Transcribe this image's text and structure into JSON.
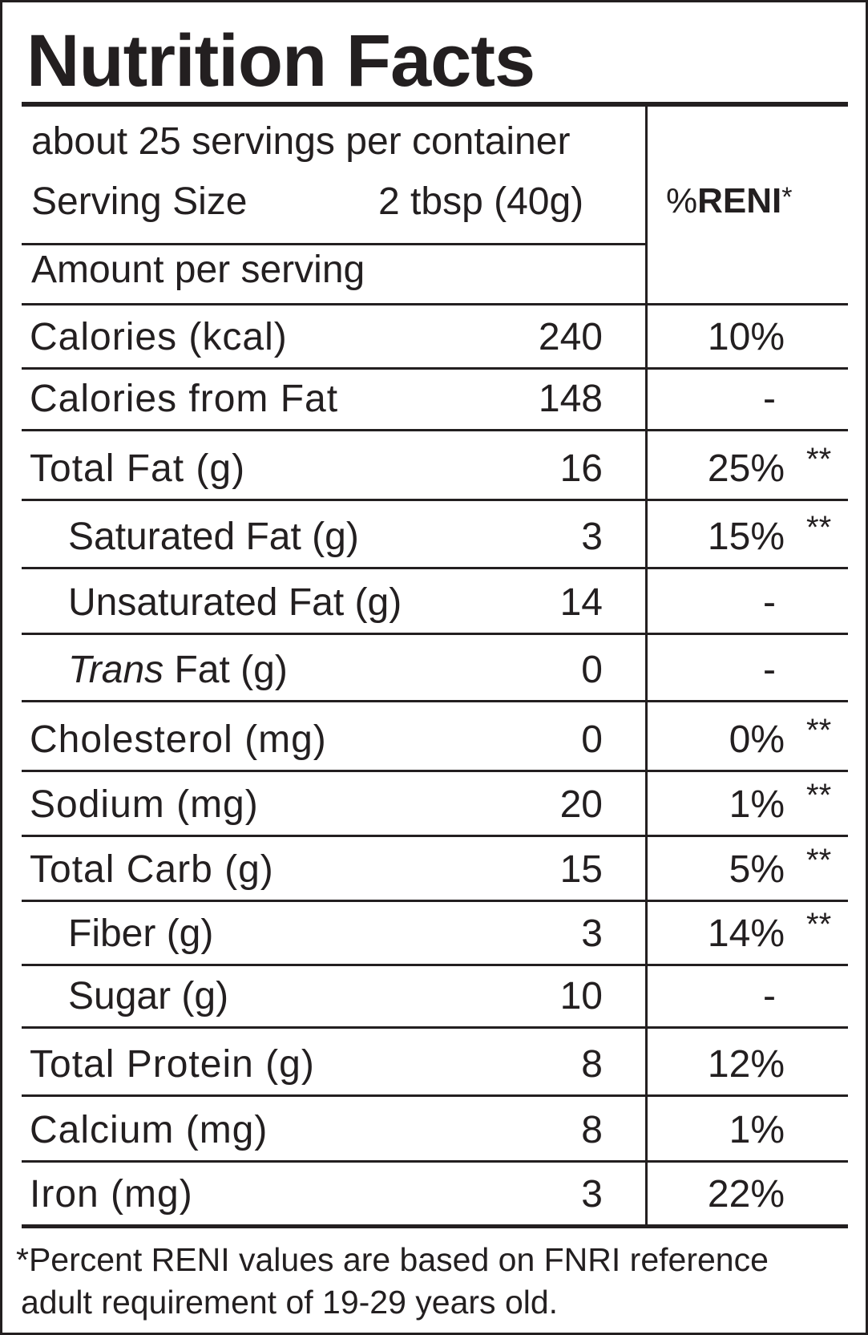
{
  "title": "Nutrition Facts",
  "servings_per_container": "about 25 servings per container",
  "serving_size_label": "Serving Size",
  "serving_size_value": "2 tbsp (40g)",
  "amount_per_serving": "Amount per serving",
  "reni_header": {
    "prefix": "%",
    "bold": "RENI",
    "suffix": "*"
  },
  "rows": [
    {
      "label": "Calories (kcal)",
      "value": "240",
      "pct": "10%",
      "stars": "",
      "indent": false,
      "italic": ""
    },
    {
      "label": "Calories from Fat",
      "value": "148",
      "pct": "-",
      "stars": "",
      "indent": false,
      "italic": ""
    },
    {
      "label": "Total Fat (g)",
      "value": "16",
      "pct": "25%",
      "stars": "**",
      "indent": false,
      "italic": ""
    },
    {
      "label": "Saturated Fat (g)",
      "value": "3",
      "pct": "15%",
      "stars": "**",
      "indent": true,
      "italic": ""
    },
    {
      "label": "Unsaturated Fat (g)",
      "value": "14",
      "pct": "-",
      "stars": "",
      "indent": true,
      "italic": ""
    },
    {
      "label": " Fat (g)",
      "value": "0",
      "pct": "-",
      "stars": "",
      "indent": true,
      "italic": "Trans"
    },
    {
      "label": "Cholesterol (mg)",
      "value": "0",
      "pct": "0%",
      "stars": "**",
      "indent": false,
      "italic": ""
    },
    {
      "label": "Sodium (mg)",
      "value": "20",
      "pct": "1%",
      "stars": "**",
      "indent": false,
      "italic": ""
    },
    {
      "label": "Total Carb (g)",
      "value": "15",
      "pct": "5%",
      "stars": "**",
      "indent": false,
      "italic": ""
    },
    {
      "label": "Fiber (g)",
      "value": "3",
      "pct": "14%",
      "stars": "**",
      "indent": true,
      "italic": ""
    },
    {
      "label": "Sugar (g)",
      "value": "10",
      "pct": "-",
      "stars": "",
      "indent": true,
      "italic": ""
    },
    {
      "label": "Total Protein (g)",
      "value": "8",
      "pct": "12%",
      "stars": "",
      "indent": false,
      "italic": ""
    },
    {
      "label": "Calcium (mg)",
      "value": "8",
      "pct": "1%",
      "stars": "",
      "indent": false,
      "italic": ""
    },
    {
      "label": "Iron (mg)",
      "value": "3",
      "pct": "22%",
      "stars": "",
      "indent": false,
      "italic": ""
    }
  ],
  "footnote": {
    "line1": "*Percent RENI values are based on FNRI reference",
    "line2": "adult requirement of 19-29 years old."
  }
}
